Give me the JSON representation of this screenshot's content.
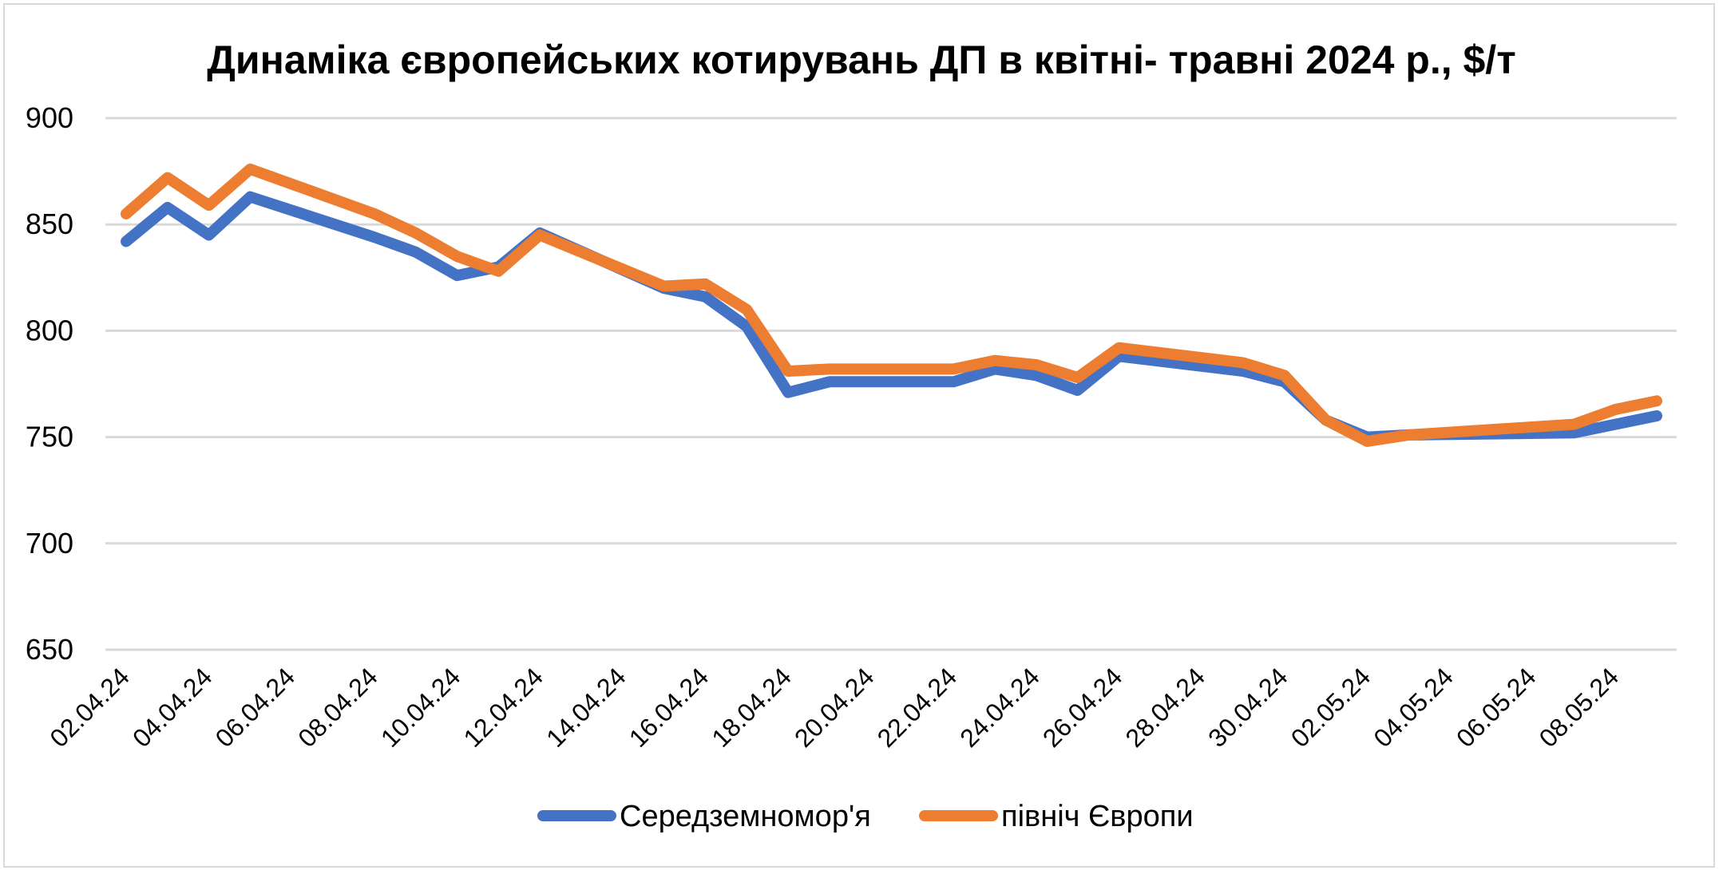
{
  "chart_data": {
    "type": "line",
    "title": "Динаміка європейських котирувань ДП в квітні- травні 2024 р., $/т",
    "xlabel": "",
    "ylabel": "",
    "ylim": [
      650,
      900
    ],
    "yticks": [
      650,
      700,
      750,
      800,
      850,
      900
    ],
    "x_tick_labels": [
      "02.04.24",
      "04.04.24",
      "06.04.24",
      "08.04.24",
      "10.04.24",
      "12.04.24",
      "14.04.24",
      "16.04.24",
      "18.04.24",
      "20.04.24",
      "22.04.24",
      "24.04.24",
      "26.04.24",
      "28.04.24",
      "30.04.24",
      "02.05.24",
      "04.05.24",
      "06.05.24",
      "08.05.24"
    ],
    "grid": true,
    "legend_position": "bottom",
    "x": [
      "02.04.24",
      "03.04.24",
      "04.04.24",
      "05.04.24",
      "08.04.24",
      "09.04.24",
      "10.04.24",
      "11.04.24",
      "12.04.24",
      "15.04.24",
      "16.04.24",
      "17.04.24",
      "18.04.24",
      "19.04.24",
      "22.04.24",
      "23.04.24",
      "24.04.24",
      "25.04.24",
      "26.04.24",
      "29.04.24",
      "30.04.24",
      "01.05.24",
      "02.05.24",
      "03.05.24",
      "07.05.24",
      "08.05.24",
      "09.05.24"
    ],
    "series": [
      {
        "name": "Середземномор'я",
        "color": "#4472C4",
        "values": [
          842,
          858,
          845,
          863,
          844,
          837,
          826,
          830,
          846,
          820,
          816,
          802,
          771,
          776,
          776,
          782,
          779,
          772,
          788,
          781,
          776,
          758,
          750,
          751,
          752,
          756,
          760
        ]
      },
      {
        "name": "північ Європи",
        "color": "#ED7D31",
        "values": [
          855,
          872,
          859,
          876,
          855,
          846,
          835,
          828,
          845,
          821,
          822,
          810,
          781,
          782,
          782,
          786,
          784,
          778,
          792,
          785,
          779,
          758,
          748,
          751,
          756,
          763,
          767
        ]
      }
    ]
  }
}
